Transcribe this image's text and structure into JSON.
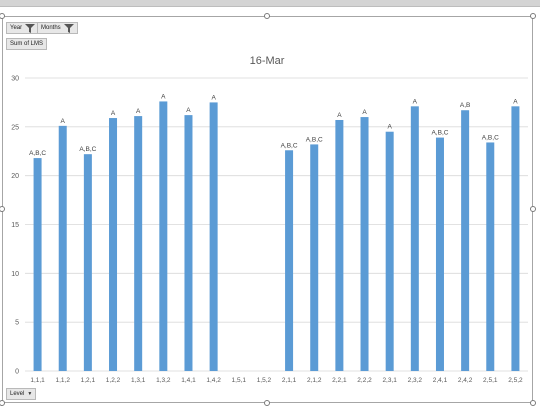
{
  "field_buttons": {
    "year": "Year",
    "months": "Months",
    "values": "Sum of LMS",
    "axis": "Level"
  },
  "colors": {
    "bar": "#5b9bd5",
    "grid": "#d9d9d9",
    "axis_text": "#595959"
  },
  "icons": {
    "filter": "filter-icon",
    "dropdown": "dropdown-icon"
  },
  "chart_data": {
    "type": "bar",
    "title": "16-Mar",
    "xlabel": "",
    "ylabel": "",
    "ylim": [
      0,
      30
    ],
    "yticks": [
      0,
      5,
      10,
      15,
      20,
      25,
      30
    ],
    "grid": true,
    "categories": [
      "1,1,1",
      "1,1,2",
      "1,2,1",
      "1,2,2",
      "1,3,1",
      "1,3,2",
      "1,4,1",
      "1,4,2",
      "1,5,1",
      "1,5,2",
      "2,1,1",
      "2,1,2",
      "2,2,1",
      "2,2,2",
      "2,3,1",
      "2,3,2",
      "2,4,1",
      "2,4,2",
      "2,5,1",
      "2,5,2"
    ],
    "values": [
      21.8,
      25.1,
      22.2,
      25.9,
      26.1,
      27.6,
      26.2,
      27.5,
      null,
      null,
      22.6,
      23.2,
      25.7,
      26.0,
      24.5,
      27.1,
      23.9,
      26.7,
      23.4,
      27.1
    ],
    "data_labels": [
      "A,B,C",
      "A",
      "A,B,C",
      "A",
      "A",
      "A",
      "A",
      "A",
      "",
      "",
      "A,B,C",
      "A,B,C",
      "A",
      "A",
      "A",
      "A",
      "A,B,C",
      "A,B",
      "A,B,C",
      "A"
    ]
  }
}
